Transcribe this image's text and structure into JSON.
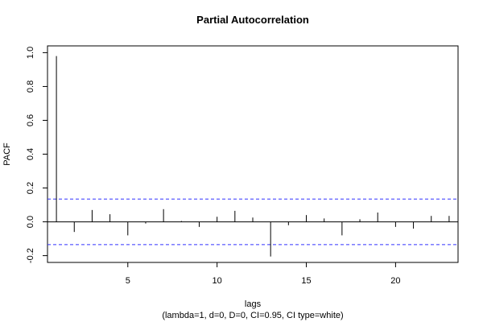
{
  "chart_data": {
    "type": "bar",
    "title": "Partial Autocorrelation",
    "xlabel": "lags",
    "subtitle": "(lambda=1, d=0, D=0, CI=0.95, CI type=white)",
    "ylabel": "PACF",
    "xlim": [
      0.5,
      23.5
    ],
    "ylim": [
      -0.24,
      1.04
    ],
    "x_ticks": [
      5,
      10,
      15,
      20
    ],
    "x_tick_labels": [
      "5",
      "10",
      "15",
      "20"
    ],
    "y_ticks": [
      -0.2,
      0.0,
      0.2,
      0.4,
      0.6,
      0.8,
      1.0
    ],
    "y_tick_labels": [
      "-0.2",
      "0.0",
      "0.2",
      "0.4",
      "0.6",
      "0.8",
      "1.0"
    ],
    "lags": [
      1,
      2,
      3,
      4,
      5,
      6,
      7,
      8,
      9,
      10,
      11,
      12,
      13,
      14,
      15,
      16,
      17,
      18,
      19,
      20,
      21,
      22,
      23
    ],
    "values": [
      0.98,
      -0.06,
      0.07,
      0.045,
      -0.08,
      -0.01,
      0.075,
      0.005,
      -0.03,
      0.03,
      0.065,
      0.025,
      -0.205,
      -0.02,
      0.04,
      0.02,
      -0.08,
      0.015,
      0.055,
      -0.03,
      -0.04,
      0.035,
      0.035
    ],
    "confidence_limits": [
      0.135,
      -0.135
    ],
    "colors": {
      "bars": "#000000",
      "confidence": "#3333ff",
      "axis": "#000000"
    },
    "grid": false
  }
}
